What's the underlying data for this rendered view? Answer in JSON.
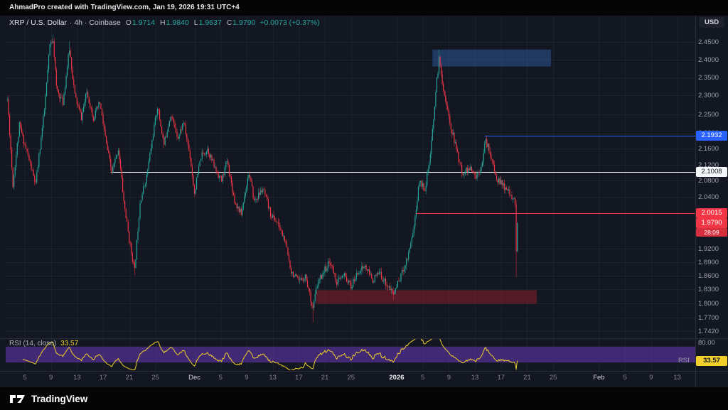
{
  "header": {
    "attribution": "AhmadPro created with TradingView.com, Jan 19, 2026 19:31 UTC+4"
  },
  "toolbar": {
    "currency": "USD"
  },
  "legend": {
    "symbol": "XRP / U.S. Dollar",
    "meta": "· 4h · Coinbase",
    "o_label": "O",
    "o": "1.9714",
    "h_label": "H",
    "h": "1.9840",
    "l_label": "L",
    "l": "1.9637",
    "c_label": "C",
    "c": "1.9790",
    "change": "+0.0073 (+0.37%)"
  },
  "price_axis": {
    "ticks": [
      "2.4500",
      "2.4000",
      "2.3500",
      "2.3000",
      "2.2500",
      "2.2000",
      "2.1600",
      "2.1200",
      "2.0800",
      "2.0400",
      "1.9200",
      "1.8900",
      "1.8600",
      "1.8300",
      "1.8000",
      "1.7700",
      "1.7420"
    ],
    "special": {
      "blue": "2.1932",
      "white": "2.1008",
      "red": "2.0015",
      "last": "1.9790",
      "countdown": "28:09"
    }
  },
  "time_axis": {
    "labels": [
      {
        "text": "5",
        "day": 2
      },
      {
        "text": "9",
        "day": 6
      },
      {
        "text": "13",
        "day": 10
      },
      {
        "text": "17",
        "day": 14
      },
      {
        "text": "21",
        "day": 18
      },
      {
        "text": "25",
        "day": 22
      },
      {
        "text": "Dec",
        "day": 28,
        "major": true
      },
      {
        "text": "5",
        "day": 32
      },
      {
        "text": "9",
        "day": 36
      },
      {
        "text": "13",
        "day": 40
      },
      {
        "text": "17",
        "day": 44
      },
      {
        "text": "21",
        "day": 48
      },
      {
        "text": "25",
        "day": 52
      },
      {
        "text": "2026",
        "day": 59,
        "major": true,
        "year": true
      },
      {
        "text": "5",
        "day": 63
      },
      {
        "text": "9",
        "day": 67
      },
      {
        "text": "13",
        "day": 71
      },
      {
        "text": "17",
        "day": 75
      },
      {
        "text": "21",
        "day": 79
      },
      {
        "text": "25",
        "day": 83
      },
      {
        "text": "Feb",
        "day": 90,
        "major": true
      },
      {
        "text": "5",
        "day": 94
      },
      {
        "text": "9",
        "day": 98
      },
      {
        "text": "13",
        "day": 102
      }
    ]
  },
  "rsi_legend": {
    "title": "RSI (14, close)",
    "value": "33.57"
  },
  "rsi_axis": {
    "tick80": "80.00",
    "label": "RSI",
    "value": "33.57"
  },
  "footer": {
    "brand": "TradingView"
  },
  "chart_data": {
    "type": "candlestick",
    "symbol": "XRP/USD",
    "interval": "4h",
    "exchange": "Coinbase",
    "scale": "log",
    "last_price": 1.979,
    "ohlc": {
      "open": 1.9714,
      "high": 1.984,
      "low": 1.9637,
      "close": 1.979,
      "change": 0.0073,
      "change_pct": 0.37
    },
    "price_axis_range": [
      1.73,
      2.47
    ],
    "colors": {
      "up": "#26a69a",
      "down": "#f23645"
    },
    "candles": {
      "count": 470,
      "seed": 11,
      "anchors": [
        [
          0,
          2.29
        ],
        [
          5,
          2.07
        ],
        [
          11,
          2.22
        ],
        [
          16,
          2.17
        ],
        [
          26,
          2.07
        ],
        [
          34,
          2.26
        ],
        [
          39,
          2.44
        ],
        [
          42,
          2.46
        ],
        [
          45,
          2.32
        ],
        [
          51,
          2.28
        ],
        [
          57,
          2.43
        ],
        [
          62,
          2.3
        ],
        [
          68,
          2.24
        ],
        [
          73,
          2.31
        ],
        [
          79,
          2.24
        ],
        [
          85,
          2.28
        ],
        [
          91,
          2.17
        ],
        [
          96,
          2.1
        ],
        [
          102,
          2.16
        ],
        [
          107,
          2.03
        ],
        [
          112,
          1.94
        ],
        [
          117,
          1.87
        ],
        [
          122,
          2.03
        ],
        [
          128,
          2.09
        ],
        [
          133,
          2.18
        ],
        [
          138,
          2.27
        ],
        [
          144,
          2.17
        ],
        [
          150,
          2.25
        ],
        [
          157,
          2.19
        ],
        [
          162,
          2.23
        ],
        [
          168,
          2.14
        ],
        [
          172,
          2.05
        ],
        [
          178,
          2.14
        ],
        [
          184,
          2.16
        ],
        [
          191,
          2.11
        ],
        [
          197,
          2.08
        ],
        [
          202,
          2.13
        ],
        [
          209,
          2.03
        ],
        [
          215,
          2.0
        ],
        [
          222,
          2.1
        ],
        [
          227,
          2.03
        ],
        [
          235,
          2.06
        ],
        [
          242,
          2.0
        ],
        [
          248,
          1.98
        ],
        [
          255,
          1.94
        ],
        [
          261,
          1.87
        ],
        [
          268,
          1.845
        ],
        [
          274,
          1.86
        ],
        [
          281,
          1.79
        ],
        [
          285,
          1.84
        ],
        [
          291,
          1.87
        ],
        [
          297,
          1.89
        ],
        [
          303,
          1.845
        ],
        [
          310,
          1.86
        ],
        [
          316,
          1.835
        ],
        [
          323,
          1.87
        ],
        [
          329,
          1.88
        ],
        [
          336,
          1.85
        ],
        [
          342,
          1.865
        ],
        [
          349,
          1.84
        ],
        [
          355,
          1.82
        ],
        [
          362,
          1.86
        ],
        [
          368,
          1.9
        ],
        [
          374,
          1.97
        ],
        [
          379,
          2.08
        ],
        [
          384,
          2.06
        ],
        [
          389,
          2.14
        ],
        [
          394,
          2.31
        ],
        [
          397,
          2.4
        ],
        [
          401,
          2.32
        ],
        [
          406,
          2.24
        ],
        [
          412,
          2.17
        ],
        [
          418,
          2.1
        ],
        [
          425,
          2.11
        ],
        [
          431,
          2.09
        ],
        [
          436,
          2.12
        ],
        [
          440,
          2.18
        ],
        [
          444,
          2.15
        ],
        [
          449,
          2.09
        ],
        [
          455,
          2.07
        ],
        [
          460,
          2.055
        ],
        [
          465,
          2.04
        ],
        [
          467,
          2.02
        ],
        [
          468,
          1.92
        ],
        [
          469,
          1.979
        ]
      ],
      "wick_events": [
        {
          "i": 42,
          "high": 2.472
        },
        {
          "i": 57,
          "high": 2.452
        },
        {
          "i": 117,
          "low": 1.861
        },
        {
          "i": 281,
          "low": 1.76
        },
        {
          "i": 355,
          "low": 1.807
        },
        {
          "i": 397,
          "high": 2.428
        },
        {
          "i": 468,
          "low": 1.856
        }
      ]
    },
    "levels": [
      {
        "key": "blue",
        "price": 2.1932,
        "color": "#2962ff",
        "from_index": 439
      },
      {
        "key": "white",
        "price": 2.1008,
        "color": "#f5f6f8",
        "from_index": 95
      },
      {
        "key": "red",
        "price": 2.0015,
        "color": "#f23645",
        "from_index": 376
      }
    ],
    "zones": [
      {
        "name": "supply-zone",
        "top": 2.428,
        "bottom": 2.38,
        "from_index": 391,
        "to_index": 500,
        "color": "rgba(56,114,196,0.38)"
      },
      {
        "name": "demand-zone",
        "top": 1.828,
        "bottom": 1.799,
        "from_index": 284,
        "to_index": 487,
        "color": "rgba(173,32,46,0.42)"
      }
    ],
    "rsi": {
      "period": 14,
      "current": 33.57,
      "band_upper": 70,
      "band_lower": 30,
      "line_color": "#f2cf2a",
      "band_color": "rgba(103,58,183,0.55)"
    }
  }
}
